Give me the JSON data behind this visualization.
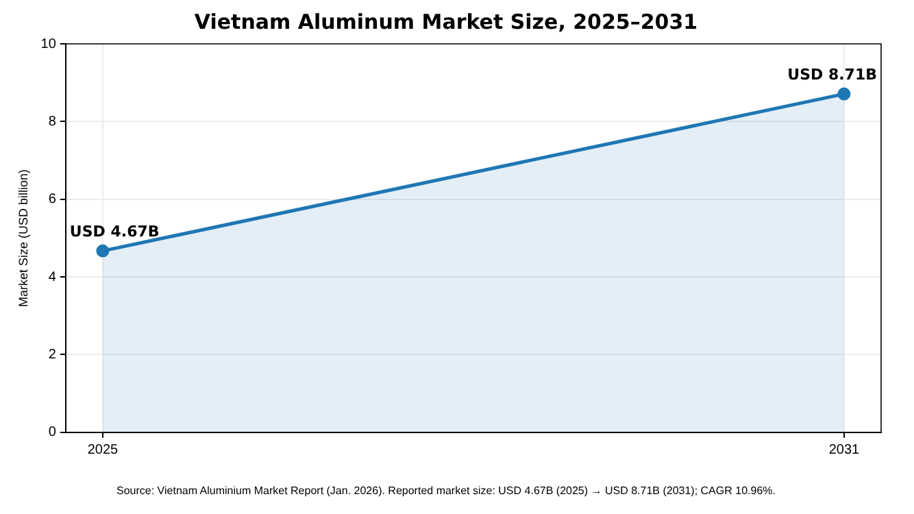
{
  "chart_data": {
    "type": "area",
    "title": "Vietnam Aluminum Market Size, 2025–2031",
    "ylabel": "Market Size (USD billion)",
    "x": [
      2025,
      2031
    ],
    "series": [
      {
        "color": "#1f77b4",
        "values": [
          4.67,
          8.71
        ],
        "value_labels": [
          "USD 4.67B",
          "USD 8.71B"
        ]
      }
    ],
    "xlim": [
      2024.7,
      2031.3
    ],
    "xticks": [
      2025,
      2031
    ],
    "ylim": [
      0,
      10
    ],
    "yticks": [
      0,
      2,
      4,
      6,
      8,
      10
    ],
    "grid": true,
    "marker": "circle",
    "line_style": "solid",
    "annotations": [
      "Source: Vietnam Aluminium Market Report (Jan. 2026). Reported market size: USD 4.67B (2025) → USD 8.71B (2031); CAGR 10.96%."
    ]
  }
}
